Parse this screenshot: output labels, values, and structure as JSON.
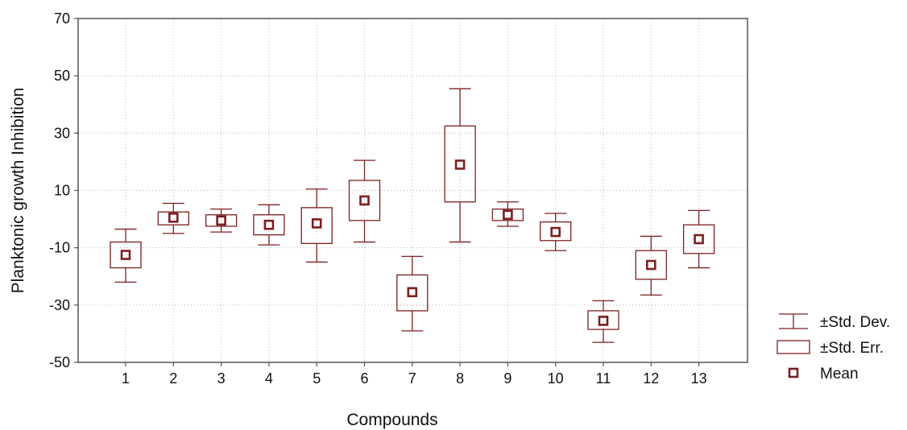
{
  "chart_data": {
    "type": "box",
    "xlabel": "Compounds",
    "ylabel": "Planktonic growth Inhibition",
    "ylim": [
      -50,
      70
    ],
    "yticks": [
      -50,
      -30,
      -10,
      10,
      30,
      50,
      70
    ],
    "grid": true,
    "legend_position": "bottom-right",
    "color": "#7b1f1f",
    "categories": [
      "1",
      "2",
      "3",
      "4",
      "5",
      "6",
      "7",
      "8",
      "9",
      "10",
      "11",
      "12",
      "13"
    ],
    "mean": [
      -12.5,
      0.5,
      -0.5,
      -2,
      -1.5,
      6.5,
      -25.5,
      19,
      1.5,
      -4.5,
      -35.5,
      -16,
      -7
    ],
    "se_low": [
      -17,
      -2,
      -2.5,
      -5.5,
      -8.5,
      -0.5,
      -32,
      6,
      -0.5,
      -7.5,
      -38.5,
      -21,
      -12
    ],
    "se_high": [
      -8,
      2.5,
      1.5,
      1.5,
      4,
      13.5,
      -19.5,
      32.5,
      3.5,
      -1,
      -32,
      -11,
      -2
    ],
    "sd_low": [
      -22,
      -5,
      -4.5,
      -9,
      -15,
      -8,
      -39,
      -8,
      -2.5,
      -11,
      -43,
      -26.5,
      -17
    ],
    "sd_high": [
      -3.5,
      5.5,
      3.5,
      5,
      10.5,
      20.5,
      -13,
      45.5,
      6,
      2,
      -28.5,
      -6,
      3
    ],
    "legend": [
      {
        "symbol": "whisker",
        "label": "±Std. Dev."
      },
      {
        "symbol": "box",
        "label": "±Std. Err."
      },
      {
        "symbol": "point",
        "label": "Mean"
      }
    ]
  }
}
